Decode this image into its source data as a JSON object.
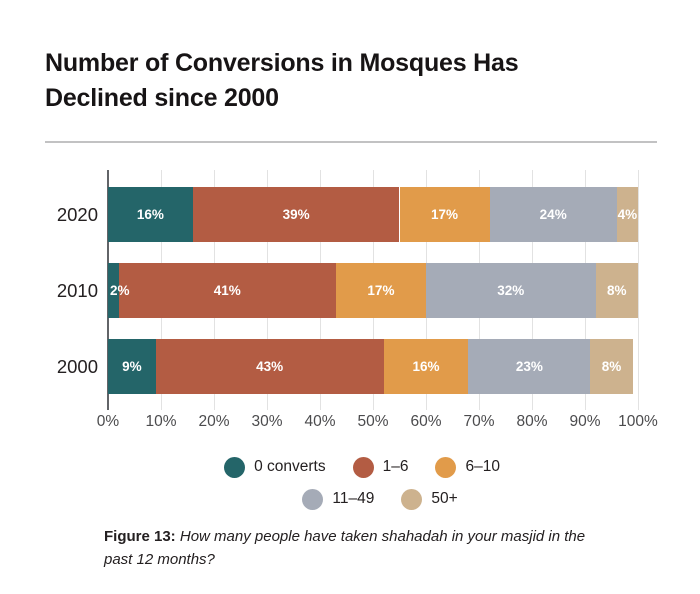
{
  "title_lines": [
    "Number of Conversions in Mosques Has",
    "Declined since 2000"
  ],
  "caption": {
    "label": "Figure 13:",
    "text": "How many people have taken shahadah in your masjid in the past 12 months?"
  },
  "chart_data": {
    "type": "bar",
    "orientation": "horizontal",
    "stacked": true,
    "title": "Number of Conversions in Mosques Has Declined since 2000",
    "categories": [
      "2020",
      "2010",
      "2000"
    ],
    "series": [
      {
        "name": "0 converts",
        "color": "#246569",
        "values": [
          16,
          2,
          9
        ]
      },
      {
        "name": "1–6",
        "color": "#b35c43",
        "values": [
          39,
          41,
          43
        ]
      },
      {
        "name": "6–10",
        "color": "#e19b4a",
        "values": [
          17,
          17,
          16
        ]
      },
      {
        "name": "11–49",
        "color": "#a5abb7",
        "values": [
          24,
          32,
          23
        ]
      },
      {
        "name": "50+",
        "color": "#cdb28e",
        "values": [
          4,
          8,
          8
        ]
      }
    ],
    "xlim": [
      0,
      100
    ],
    "x_ticks": [
      "0%",
      "10%",
      "20%",
      "30%",
      "40%",
      "50%",
      "60%",
      "70%",
      "80%",
      "90%",
      "100%"
    ],
    "grid": true,
    "data_labels": "percent",
    "axis_line_color": "#626468",
    "gridline_color": "#e2e2e2",
    "label_text_color": "#ffffff",
    "legend_position": "bottom",
    "legend_rows": [
      [
        0,
        1,
        2
      ],
      [
        3,
        4
      ]
    ]
  }
}
